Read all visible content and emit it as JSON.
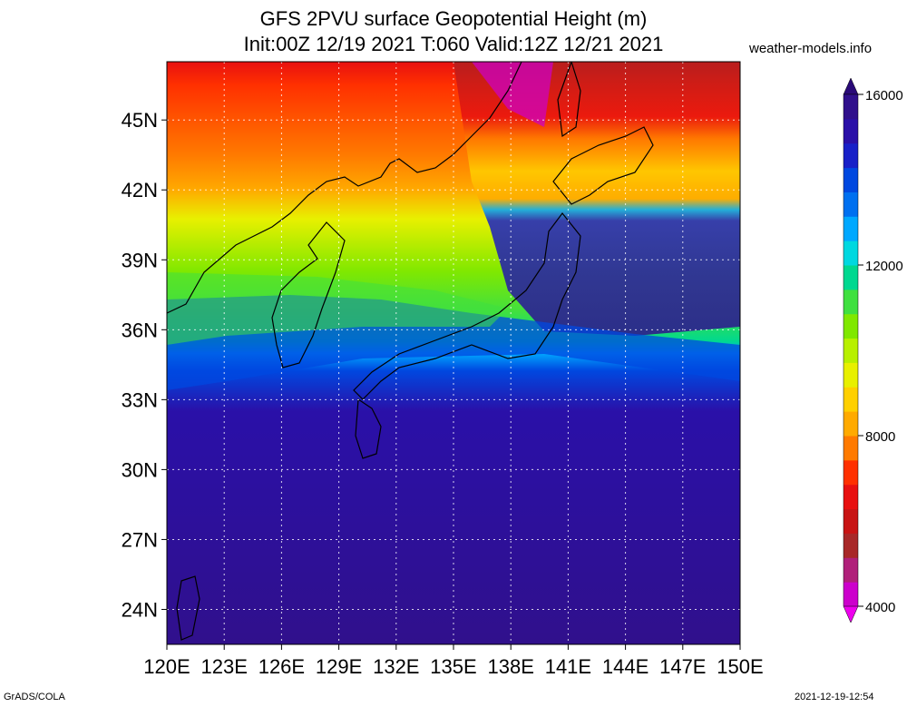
{
  "header": {
    "title": "GFS 2PVU surface Geopotential Height (m)",
    "subtitle": "Init:00Z 12/19 2021 T:060 Valid:12Z 12/21 2021",
    "site": "weather-models.info"
  },
  "map": {
    "lat_labels": [
      "45N",
      "42N",
      "39N",
      "36N",
      "33N",
      "30N",
      "27N",
      "24N"
    ],
    "lon_labels": [
      "120E",
      "123E",
      "126E",
      "129E",
      "132E",
      "135E",
      "138E",
      "141E",
      "144E",
      "147E",
      "150E"
    ],
    "lat_values": [
      45,
      42,
      39,
      36,
      33,
      30,
      27,
      24
    ],
    "lon_values": [
      120,
      123,
      126,
      129,
      132,
      135,
      138,
      141,
      144,
      147,
      150
    ],
    "extent": {
      "lon_min": 120,
      "lon_max": 150,
      "lat_min": 22.5,
      "lat_max": 47.5
    }
  },
  "colorbar": {
    "labels": [
      "16000",
      "12000",
      "8000",
      "4000"
    ],
    "colors": [
      "#cc00cc",
      "#b0207a",
      "#a82828",
      "#c81414",
      "#e81010",
      "#ff3000",
      "#ff7a00",
      "#ffaa00",
      "#ffd000",
      "#e8f000",
      "#b8f000",
      "#80e800",
      "#40e040",
      "#00d890",
      "#00d8e0",
      "#00a8ff",
      "#0070f0",
      "#0048e0",
      "#1820c8",
      "#2a10a8",
      "#30108c"
    ],
    "upper_triangle_color": "#2a0a78",
    "lower_triangle_color": "#ee00ee"
  },
  "footer": {
    "left": "GrADS/COLA",
    "right": "2021-12-19-12:54"
  }
}
